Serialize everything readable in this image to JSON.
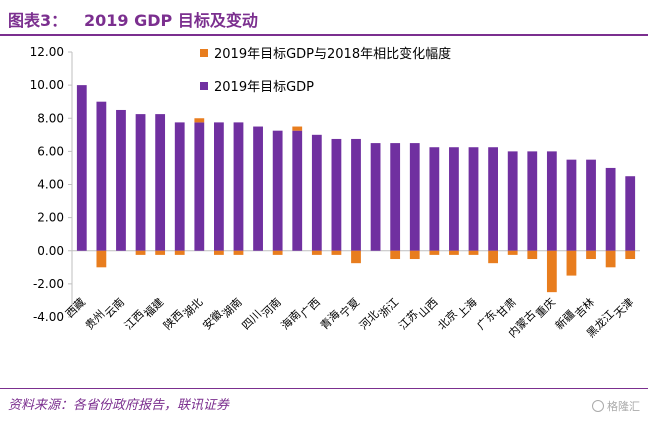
{
  "header": {
    "fig_label": "图表3：",
    "fig_title": "2019 GDP 目标及变动"
  },
  "footer": {
    "source": "资料来源：各省份政府报告，联讯证券",
    "watermark": "格隆汇"
  },
  "colors": {
    "accent": "#7b2f8f",
    "series_target": "#7030a0",
    "series_change": "#e87d1e"
  },
  "chart_data": {
    "type": "bar",
    "title": "2019 GDP 目标及变动",
    "ylim": [
      -4,
      12
    ],
    "yticks": [
      "-4.00",
      "-2.00",
      "0.00",
      "2.00",
      "4.00",
      "6.00",
      "8.00",
      "10.00",
      "12.00"
    ],
    "ytick_values": [
      -4,
      -2,
      0,
      2,
      4,
      6,
      8,
      10,
      12
    ],
    "legend_position": "top-right",
    "categories": [
      "西藏",
      "贵州",
      "云南",
      "江西",
      "福建",
      "陕西",
      "湖北",
      "安徽",
      "湖南",
      "四川",
      "河南",
      "海南",
      "广西",
      "青海",
      "宁夏",
      "河北",
      "浙江",
      "江苏",
      "山西",
      "北京",
      "上海",
      "广东",
      "甘肃",
      "内蒙古",
      "重庆",
      "新疆",
      "吉林",
      "黑龙江",
      "天津"
    ],
    "series": [
      {
        "name": "2019年目标GDP与2018年相比变化幅度",
        "values": [
          0,
          -1,
          0,
          -0.25,
          -0.25,
          -0.25,
          0.25,
          -0.25,
          -0.25,
          0,
          -0.25,
          0.25,
          -0.25,
          -0.25,
          -0.75,
          0,
          -0.5,
          -0.5,
          -0.25,
          -0.25,
          -0.25,
          -0.75,
          -0.25,
          -0.5,
          -2.5,
          -1.5,
          -0.5,
          -1,
          -0.5
        ]
      },
      {
        "name": "2019年目标GDP",
        "values": [
          10,
          9,
          8.5,
          8.25,
          8.25,
          7.75,
          7.75,
          7.75,
          7.75,
          7.5,
          7.25,
          7.25,
          7,
          6.75,
          6.75,
          6.5,
          6.5,
          6.5,
          6.25,
          6.25,
          6.25,
          6.25,
          6,
          6,
          6,
          5.5,
          5.5,
          5,
          4.5
        ]
      }
    ]
  }
}
